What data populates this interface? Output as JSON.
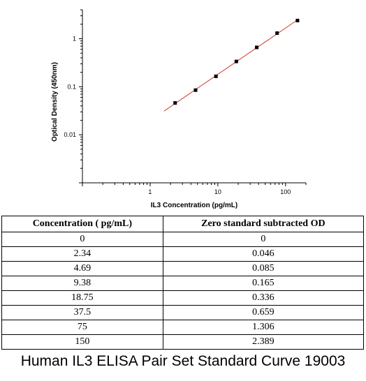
{
  "chart_data": {
    "type": "scatter",
    "x_scale": "log",
    "y_scale": "log",
    "xlabel": "IL3 Concentration (pg/mL)",
    "ylabel": "Optical Density (450nm)",
    "x_ticks": [
      "1",
      "10",
      "100"
    ],
    "y_ticks": [
      "0.01",
      "0.1",
      "1"
    ],
    "xlim": [
      0.1,
      200
    ],
    "ylim": [
      0.001,
      4
    ],
    "grid": false,
    "series": [
      {
        "points": [
          {
            "x": 2.34,
            "y": 0.046
          },
          {
            "x": 4.69,
            "y": 0.085
          },
          {
            "x": 9.38,
            "y": 0.165
          },
          {
            "x": 18.75,
            "y": 0.336
          },
          {
            "x": 37.5,
            "y": 0.659
          },
          {
            "x": 75,
            "y": 1.306
          },
          {
            "x": 150,
            "y": 2.389
          }
        ]
      }
    ],
    "fit_line": {
      "x_start": 1.6,
      "x_end": 150,
      "color": "#d0392b"
    },
    "marker_color": "#000000"
  },
  "table": {
    "headers": [
      "Concentration ( pg/mL)",
      "Zero standard subtracted OD"
    ],
    "rows": [
      [
        "0",
        "0"
      ],
      [
        "2.34",
        "0.046"
      ],
      [
        "4.69",
        "0.085"
      ],
      [
        "9.38",
        "0.165"
      ],
      [
        "18.75",
        "0.336"
      ],
      [
        "37.5",
        "0.659"
      ],
      [
        "75",
        "1.306"
      ],
      [
        "150",
        "2.389"
      ]
    ]
  },
  "caption": "Human IL3 ELISA Pair Set Standard Curve 19003"
}
